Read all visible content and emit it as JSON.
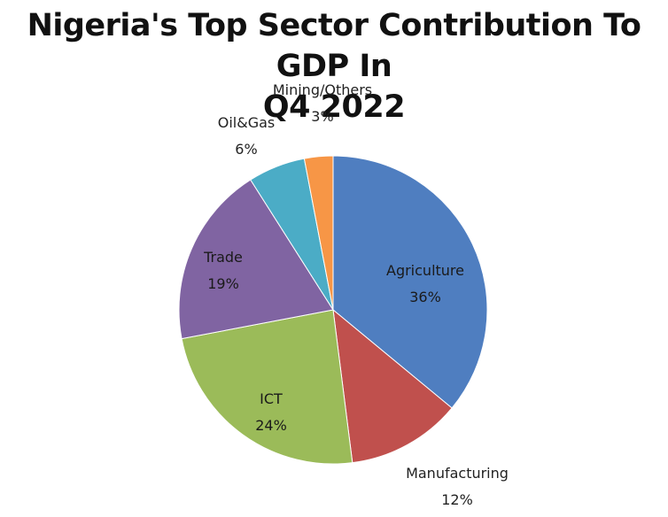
{
  "chart_data": {
    "type": "pie",
    "title_lines": [
      "Nigeria's Top Sector Contribution To GDP In",
      "Q4 2022"
    ],
    "slices": [
      {
        "label": "Agriculture",
        "value": 36,
        "display": "36%",
        "color": "#4f7ec0"
      },
      {
        "label": "Manufacturing",
        "value": 12,
        "display": "12%",
        "color": "#c0504d"
      },
      {
        "label": "ICT",
        "value": 24,
        "display": "24%",
        "color": "#9bbb59"
      },
      {
        "label": "Trade",
        "value": 19,
        "display": "19%",
        "color": "#8064a2"
      },
      {
        "label": "Oil&Gas",
        "value": 6,
        "display": "6%",
        "color": "#4bacc6"
      },
      {
        "label": "Mining/Others",
        "value": 3,
        "display": "3%",
        "color": "#f79646"
      }
    ]
  }
}
